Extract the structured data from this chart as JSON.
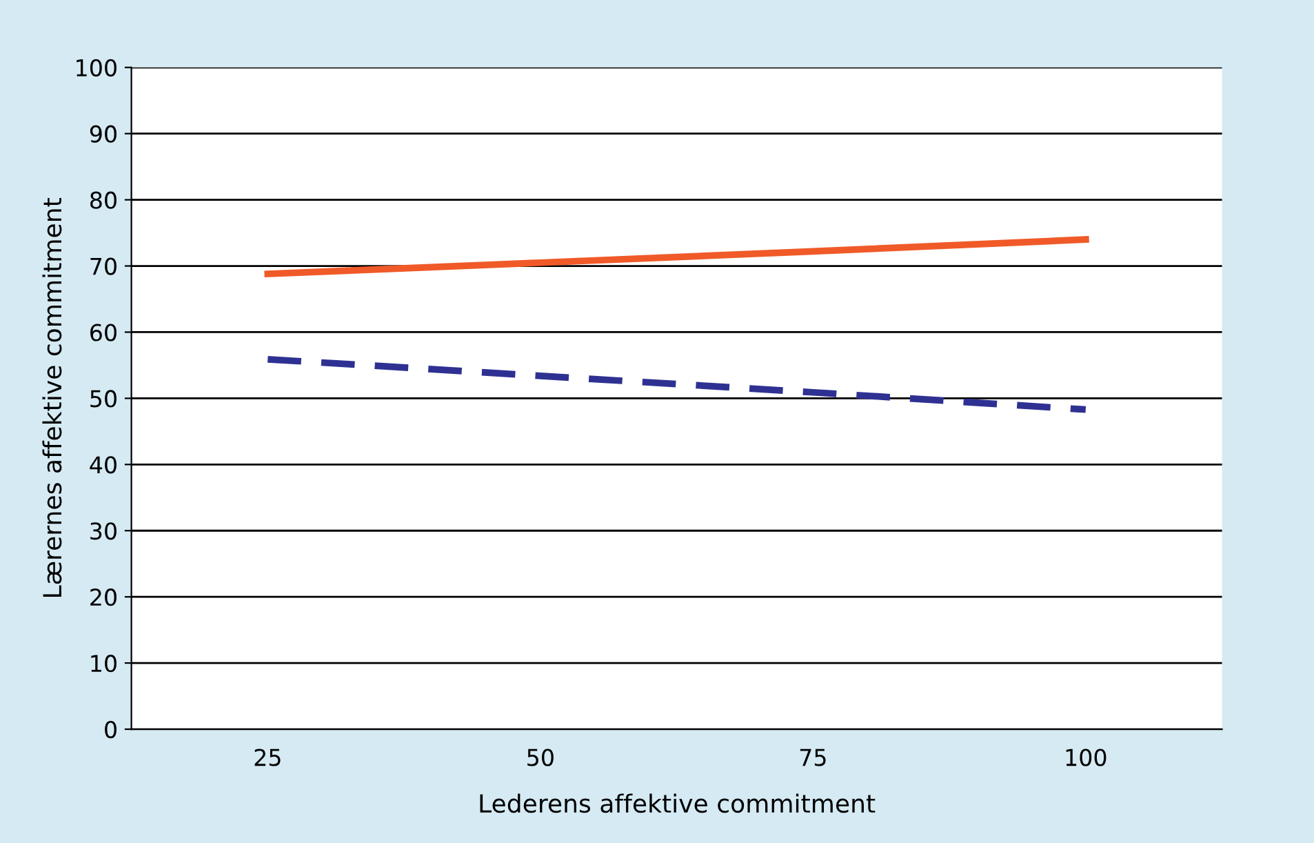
{
  "chart_data": {
    "type": "line",
    "xlabel": "Lederens affektive commitment",
    "ylabel": "Lærernes affektive commitment",
    "categories": [
      "25",
      "50",
      "75",
      "100"
    ],
    "series": [
      {
        "color": "#f05a28",
        "values": [
          68.8,
          70.5,
          72.2,
          74.0
        ],
        "line_style": "solid"
      },
      {
        "color": "#2e3192",
        "values": [
          55.9,
          53.4,
          50.9,
          48.3
        ],
        "line_style": "dashed"
      }
    ],
    "ylim": [
      0,
      100
    ],
    "yticks": [
      0,
      10,
      20,
      30,
      40,
      50,
      60,
      70,
      80,
      90,
      100
    ],
    "grid": "y",
    "legend": false,
    "marker": "none"
  }
}
